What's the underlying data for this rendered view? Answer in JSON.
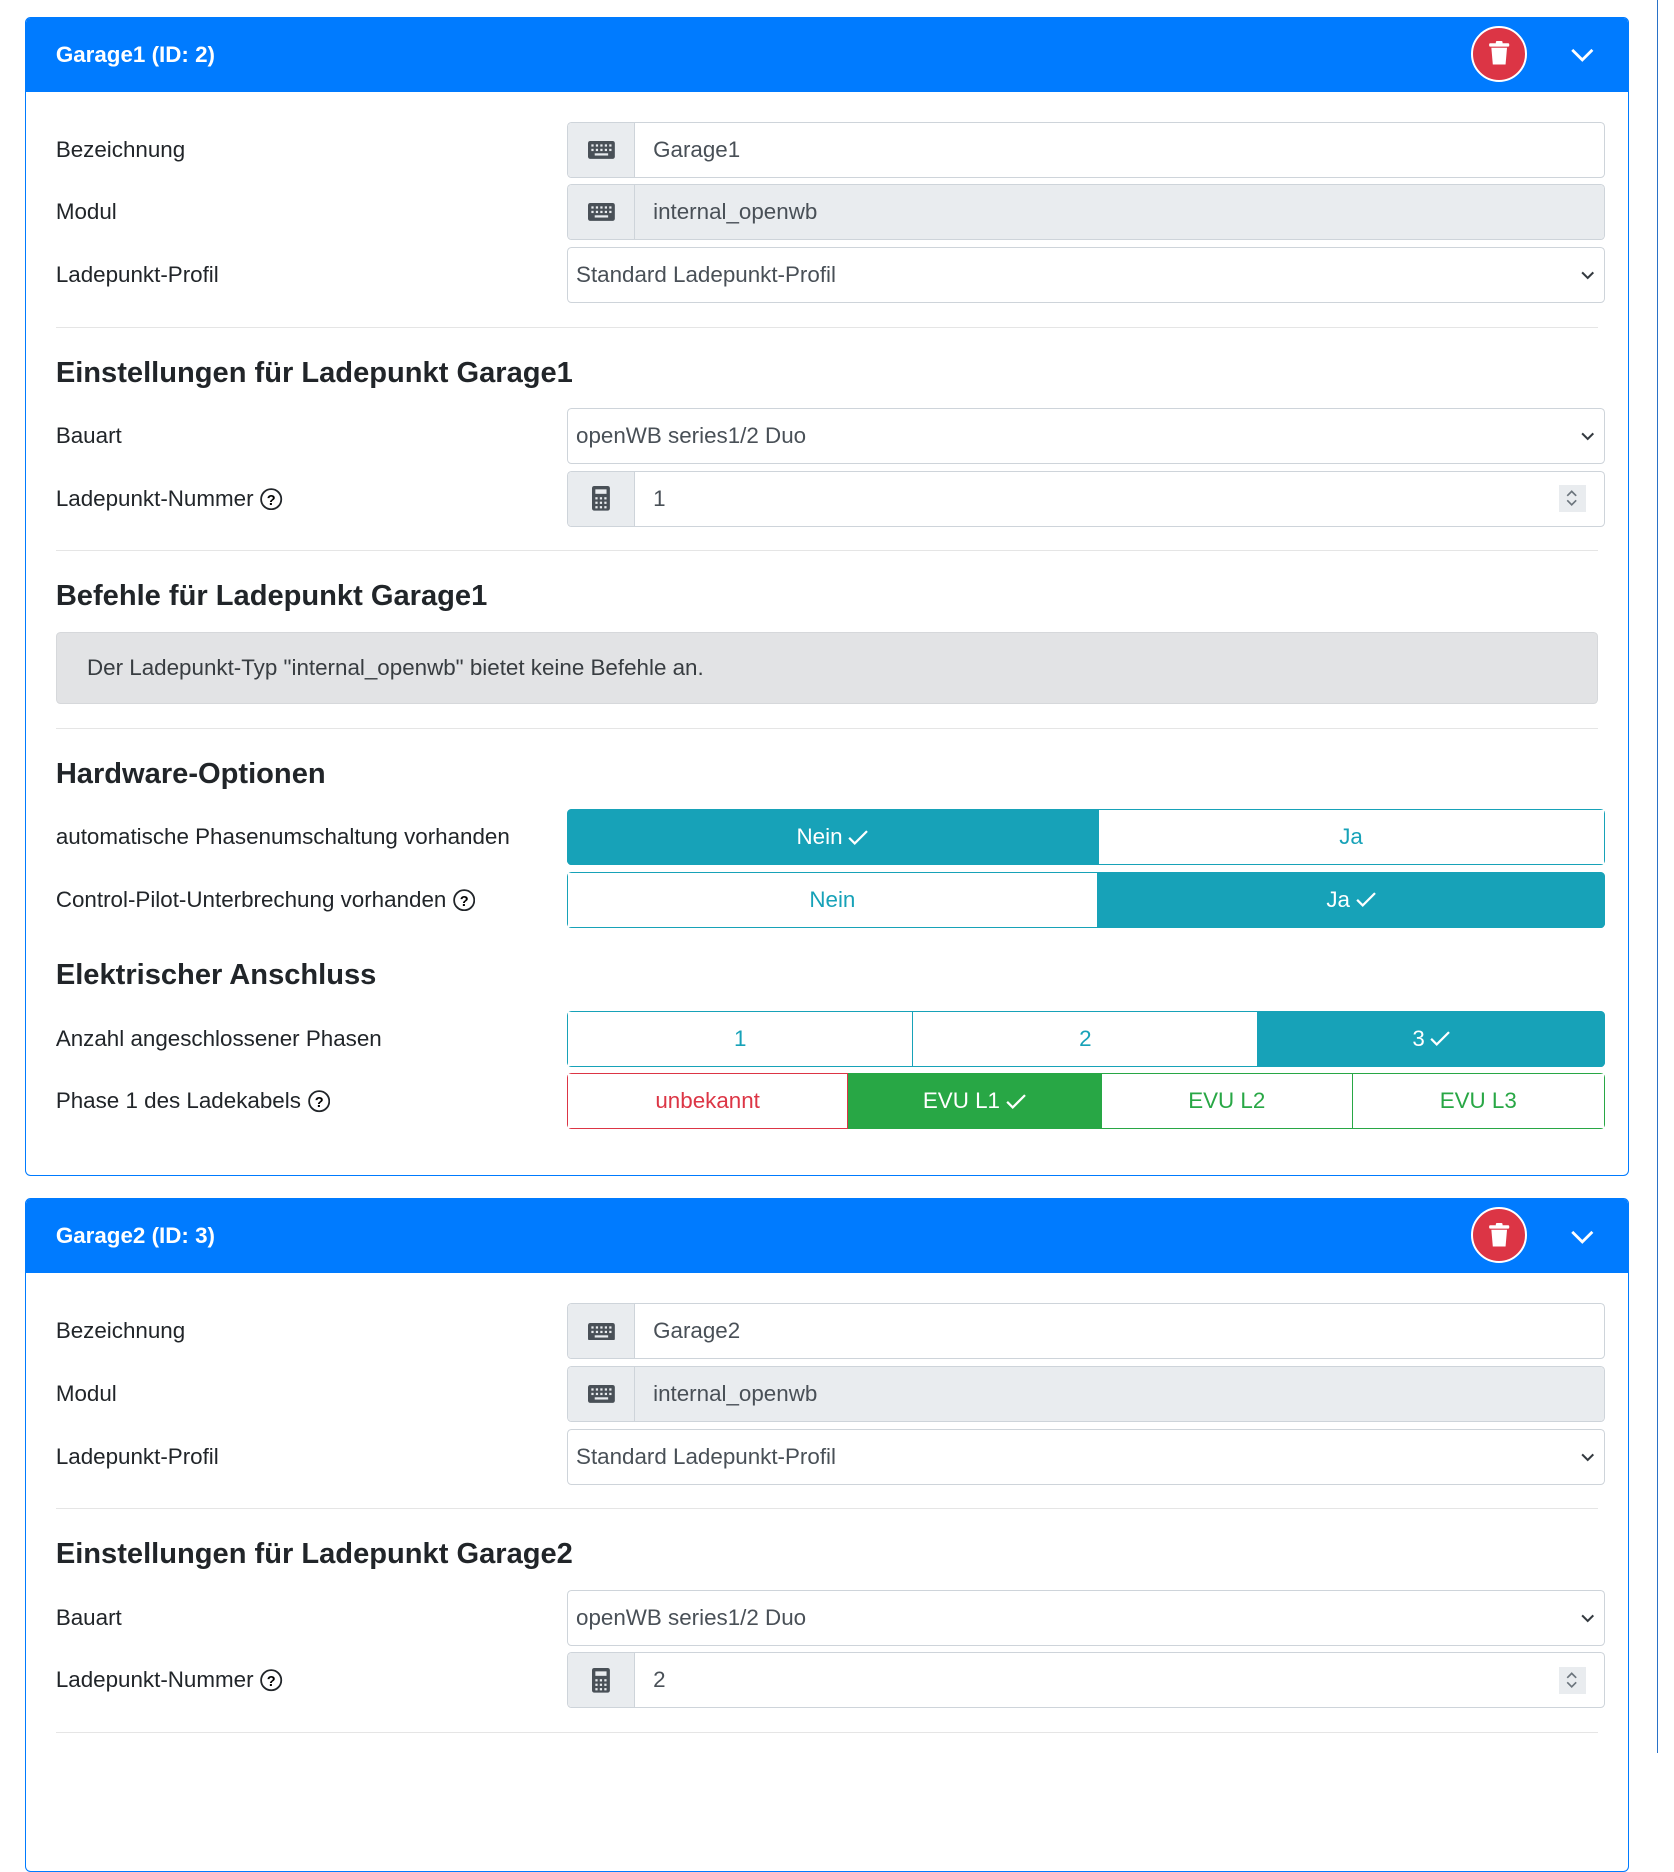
{
  "colors": {
    "primary": "#007bff",
    "danger": "#dc3545",
    "info": "#17a2b8",
    "success": "#28a745"
  },
  "cards": [
    {
      "title": "Garage1 (ID: 2)",
      "bezeichnung_label": "Bezeichnung",
      "bezeichnung_value": "Garage1",
      "modul_label": "Modul",
      "modul_value": "internal_openwb",
      "profil_label": "Ladepunkt-Profil",
      "profil_value": "Standard Ladepunkt-Profil",
      "settings_heading": "Einstellungen für Ladepunkt Garage1",
      "bauart_label": "Bauart",
      "bauart_value": "openWB series1/2 Duo",
      "nummer_label": "Ladepunkt-Nummer",
      "nummer_value": "1",
      "commands_heading": "Befehle für Ladepunkt Garage1",
      "commands_alert": "Der Ladepunkt-Typ \"internal_openwb\" bietet keine Befehle an.",
      "hardware_heading": "Hardware-Optionen",
      "phase_switch_label": "automatische Phasenumschaltung vorhanden",
      "phase_switch_options": [
        "Nein",
        "Ja"
      ],
      "phase_switch_selected": "Nein",
      "cp_label": "Control-Pilot-Unterbrechung vorhanden",
      "cp_options": [
        "Nein",
        "Ja"
      ],
      "cp_selected": "Ja",
      "electric_heading": "Elektrischer Anschluss",
      "phases_label": "Anzahl angeschlossener Phasen",
      "phases_options": [
        "1",
        "2",
        "3"
      ],
      "phases_selected": "3",
      "phase1_label": "Phase 1 des Ladekabels",
      "phase1_options": [
        "unbekannt",
        "EVU L1",
        "EVU L2",
        "EVU L3"
      ],
      "phase1_selected": "EVU L1"
    },
    {
      "title": "Garage2 (ID: 3)",
      "bezeichnung_label": "Bezeichnung",
      "bezeichnung_value": "Garage2",
      "modul_label": "Modul",
      "modul_value": "internal_openwb",
      "profil_label": "Ladepunkt-Profil",
      "profil_value": "Standard Ladepunkt-Profil",
      "settings_heading": "Einstellungen für Ladepunkt Garage2",
      "bauart_label": "Bauart",
      "bauart_value": "openWB series1/2 Duo",
      "nummer_label": "Ladepunkt-Nummer",
      "nummer_value": "2"
    }
  ]
}
